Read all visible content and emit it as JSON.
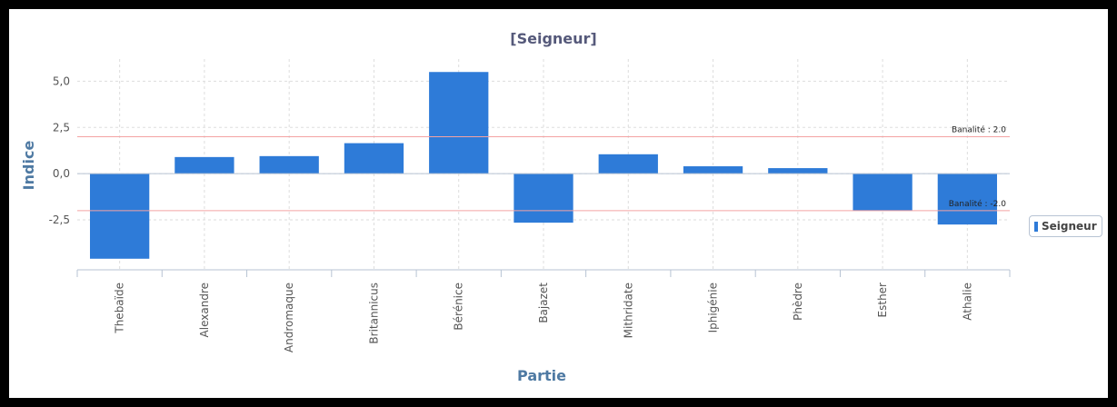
{
  "colors": {
    "bar": "#2e7bd8",
    "refline": "#f4a3a3",
    "grid": "#dddddd",
    "axis": "#b7c3d3"
  },
  "chart_data": {
    "type": "bar",
    "title": "[Seigneur]",
    "xlabel": "Partie",
    "ylabel": "Indice",
    "categories": [
      "Thebaïde",
      "Alexandre",
      "Andromaque",
      "Britannicus",
      "Bérénice",
      "Bajazet",
      "Mithridate",
      "Iphigénie",
      "Phèdre",
      "Esther",
      "Athalie"
    ],
    "series": [
      {
        "name": "Seigneur",
        "values": [
          -4.6,
          0.9,
          0.95,
          1.65,
          5.5,
          -2.65,
          1.05,
          0.4,
          0.3,
          -2.0,
          -2.75
        ]
      }
    ],
    "ylim": [
      -5.2,
      6.2
    ],
    "yticks": [
      "5,0",
      "2,5",
      "0,0",
      "-2,5"
    ],
    "ytick_values": [
      5,
      2.5,
      0,
      -2.5
    ],
    "reference_lines": [
      {
        "value": 2.0,
        "label": "Banalité : 2.0"
      },
      {
        "value": -2.0,
        "label": "Banalité : -2.0"
      }
    ],
    "grid": true,
    "legend_position": "right"
  }
}
